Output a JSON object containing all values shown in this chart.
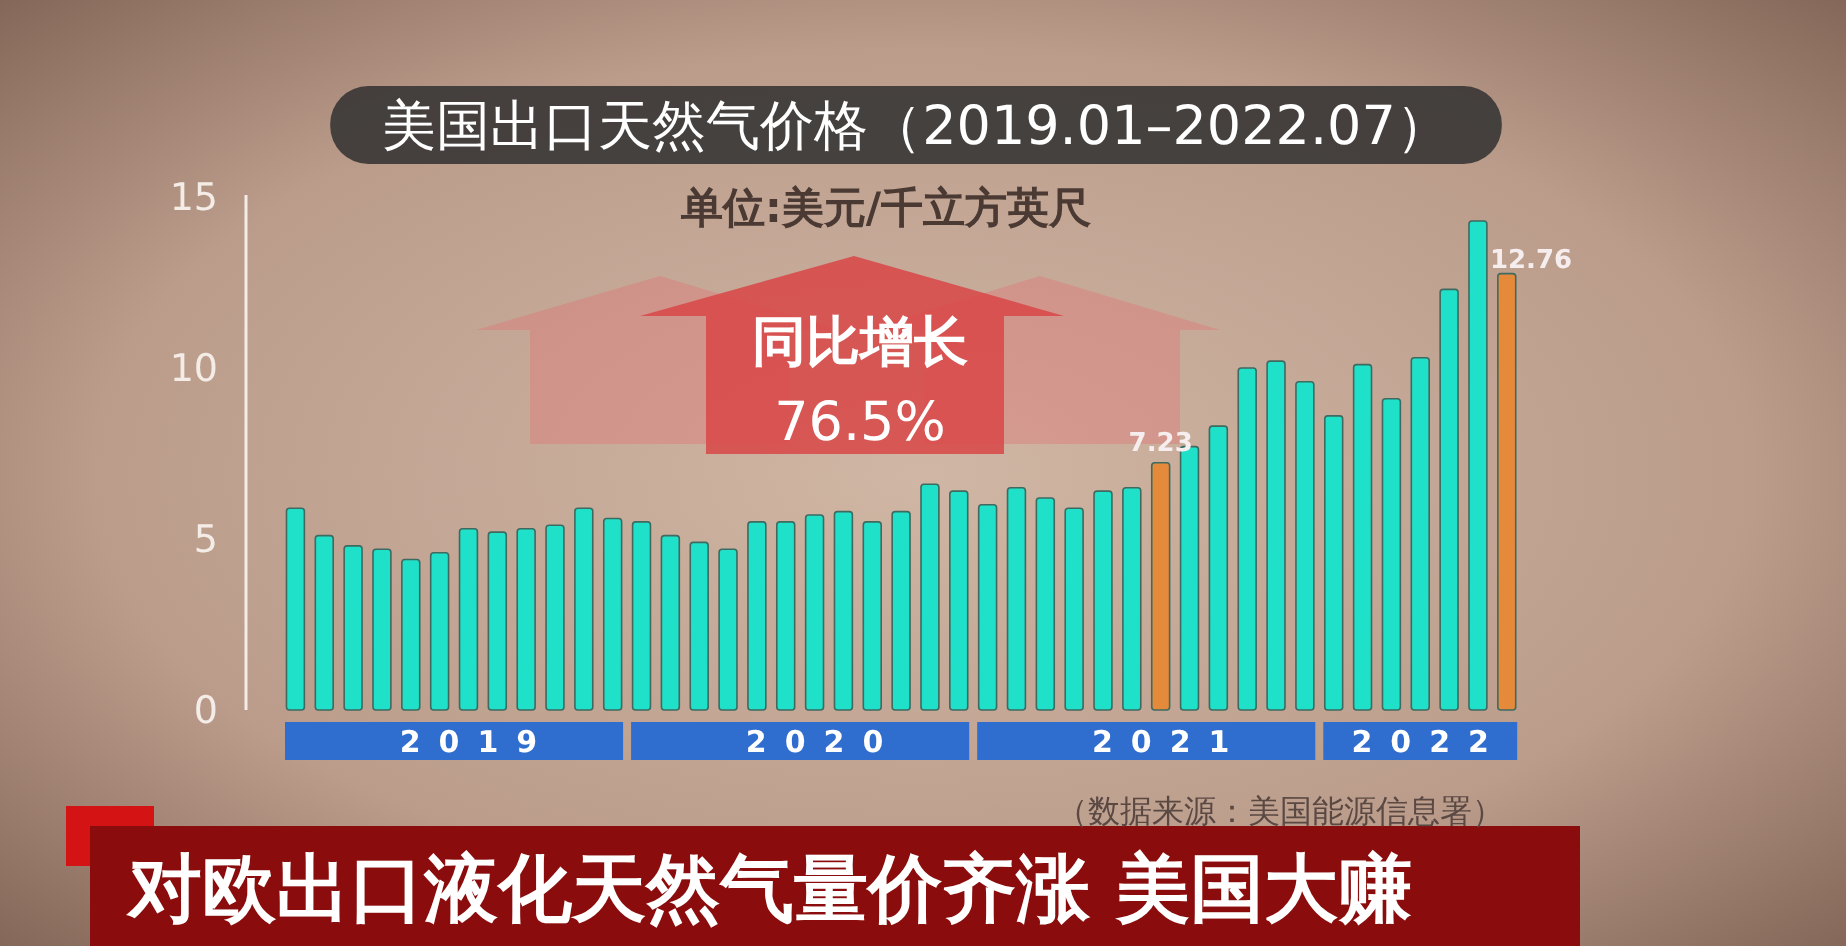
{
  "chart_data": {
    "type": "bar",
    "title": "美国出口天然气价格（2019.01–2022.07）",
    "subtitle": "单位:美元/千立方英尺",
    "categories": [
      null,
      null,
      null,
      null,
      null,
      null,
      "2019",
      null,
      null,
      null,
      null,
      null,
      null,
      null,
      null,
      null,
      null,
      null,
      "2020",
      null,
      null,
      null,
      null,
      null,
      null,
      null,
      null,
      null,
      null,
      null,
      "2021",
      null,
      null,
      null,
      null,
      null,
      null,
      null,
      null,
      "2022",
      null,
      null,
      null
    ],
    "values": [
      5.9,
      5.1,
      4.8,
      4.7,
      4.4,
      4.6,
      5.3,
      5.2,
      5.3,
      5.4,
      5.9,
      5.6,
      5.5,
      5.1,
      4.9,
      4.7,
      5.5,
      5.5,
      5.7,
      5.8,
      5.5,
      5.8,
      6.6,
      6.4,
      6.0,
      6.5,
      6.2,
      5.9,
      6.4,
      6.5,
      7.23,
      7.7,
      8.3,
      10.0,
      10.2,
      9.6,
      8.6,
      10.1,
      9.1,
      10.3,
      12.3,
      14.3,
      12.76
    ],
    "colors": [
      "#1fe0c8",
      "#1fe0c8",
      "#1fe0c8",
      "#1fe0c8",
      "#1fe0c8",
      "#1fe0c8",
      "#1fe0c8",
      "#1fe0c8",
      "#1fe0c8",
      "#1fe0c8",
      "#1fe0c8",
      "#1fe0c8",
      "#1fe0c8",
      "#1fe0c8",
      "#1fe0c8",
      "#1fe0c8",
      "#1fe0c8",
      "#1fe0c8",
      "#1fe0c8",
      "#1fe0c8",
      "#1fe0c8",
      "#1fe0c8",
      "#1fe0c8",
      "#1fe0c8",
      "#1fe0c8",
      "#1fe0c8",
      "#1fe0c8",
      "#1fe0c8",
      "#1fe0c8",
      "#1fe0c8",
      "#e48a3a",
      "#1fe0c8",
      "#1fe0c8",
      "#1fe0c8",
      "#1fe0c8",
      "#1fe0c8",
      "#1fe0c8",
      "#1fe0c8",
      "#1fe0c8",
      "#1fe0c8",
      "#1fe0c8",
      "#1fe0c8",
      "#e48a3a"
    ],
    "value_labels": [
      null,
      null,
      null,
      null,
      null,
      null,
      null,
      null,
      null,
      null,
      null,
      null,
      null,
      null,
      null,
      null,
      null,
      null,
      null,
      null,
      null,
      null,
      null,
      null,
      null,
      null,
      null,
      null,
      null,
      null,
      "7.23",
      null,
      null,
      null,
      null,
      null,
      null,
      null,
      null,
      null,
      null,
      null,
      "12.76"
    ],
    "ylim": [
      0,
      15
    ],
    "yticks": [
      0,
      5,
      10,
      15
    ],
    "annotations": [
      "同比增长",
      "76.5%",
      "（数据来源：美国能源信息署）",
      "对欧出口液化天然气量价齐涨 美国大赚"
    ]
  }
}
